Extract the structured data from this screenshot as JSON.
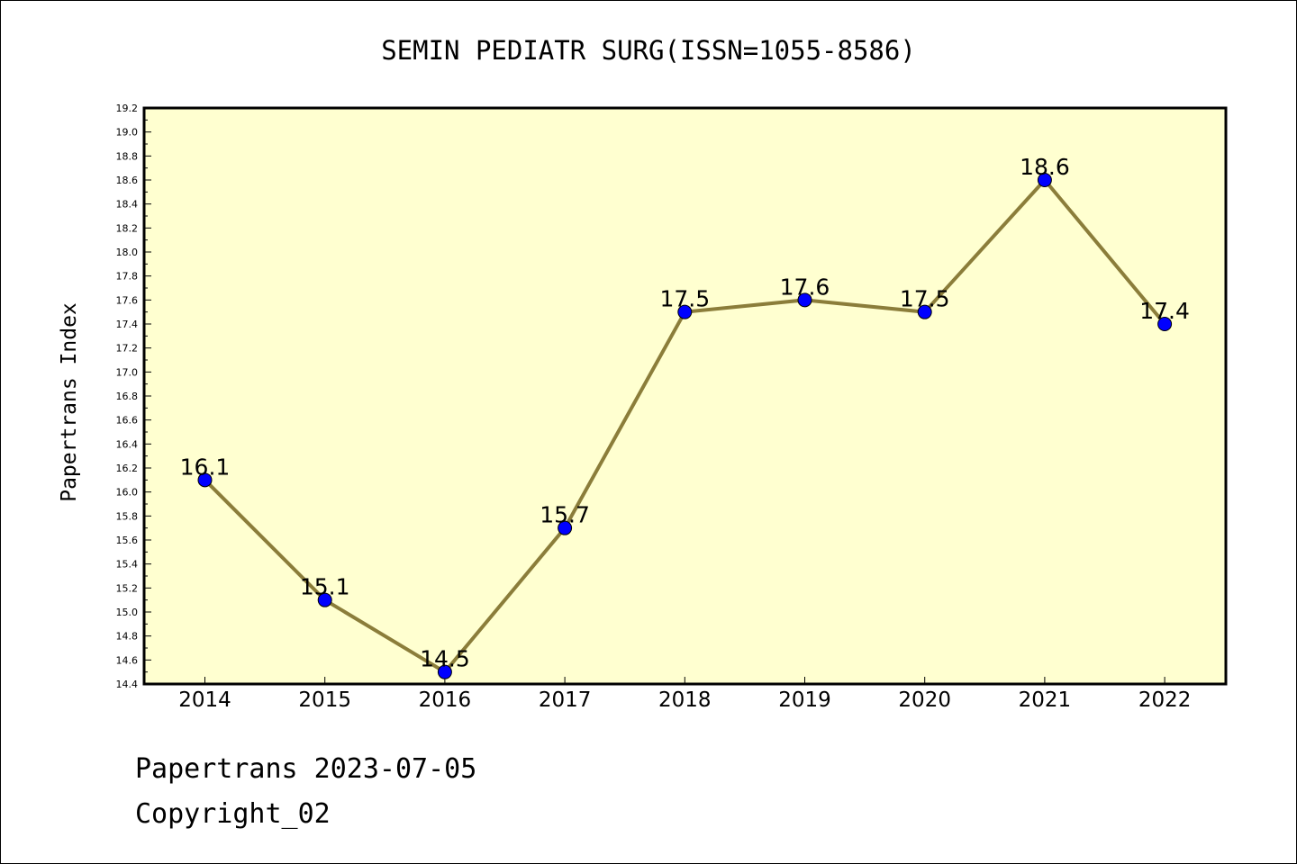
{
  "chart_data": {
    "type": "line",
    "title": "SEMIN PEDIATR SURG(ISSN=1055-8586)",
    "ylabel": "Papertrans Index",
    "xlabel": "",
    "x": [
      "2014",
      "2015",
      "2016",
      "2017",
      "2018",
      "2019",
      "2020",
      "2021",
      "2022"
    ],
    "values": [
      16.1,
      15.1,
      14.5,
      15.7,
      17.5,
      17.6,
      17.5,
      18.6,
      17.4
    ],
    "data_labels": [
      "16.1",
      "15.1",
      "14.5",
      "15.7",
      "17.5",
      "17.6",
      "17.5",
      "18.6",
      "17.4"
    ],
    "ylim": [
      14.4,
      19.2
    ],
    "yticks": [
      "14.4",
      "14.6",
      "14.8",
      "15.0",
      "15.2",
      "15.4",
      "15.6",
      "15.8",
      "16.0",
      "16.2",
      "16.4",
      "16.6",
      "16.8",
      "17.0",
      "17.2",
      "17.4",
      "17.6",
      "17.8",
      "18.0",
      "18.2",
      "18.4",
      "18.6",
      "18.8",
      "19.0",
      "19.2"
    ],
    "grid": false,
    "plot_background": "#ffffd0",
    "line_color": "#8b7d3a",
    "marker_color": "#0000ff"
  },
  "footer": {
    "line1": "Papertrans 2023-07-05",
    "line2": "Copyright_02"
  }
}
